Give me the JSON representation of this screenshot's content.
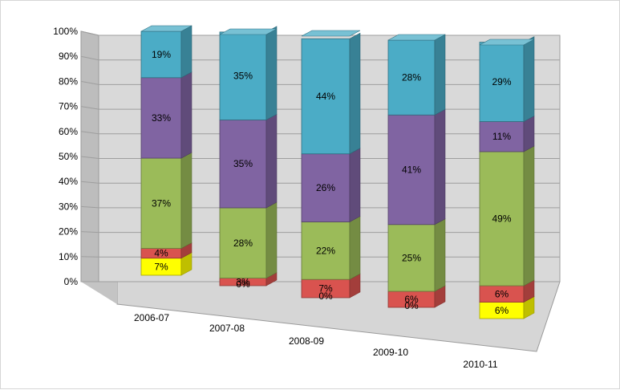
{
  "chart_data": {
    "type": "bar",
    "stacked": true,
    "three_d": true,
    "categories": [
      "2006-07",
      "2007-08",
      "2008-09",
      "2009-10",
      "2010-11"
    ],
    "series": [
      {
        "color": "#ffff00",
        "values": [
          7,
          0,
          0,
          0,
          6
        ],
        "labels": [
          "7%",
          "0%",
          "0%",
          "0%",
          "6%"
        ]
      },
      {
        "color": "#d9534f",
        "values": [
          4,
          3,
          7,
          6,
          6
        ],
        "labels": [
          "4%",
          "3%",
          "7%",
          "6%",
          "6%"
        ]
      },
      {
        "color": "#9bbb59",
        "values": [
          37,
          28,
          22,
          25,
          49
        ],
        "labels": [
          "37%",
          "28%",
          "22%",
          "25%",
          "49%"
        ]
      },
      {
        "color": "#8064a2",
        "values": [
          33,
          35,
          26,
          41,
          11
        ],
        "labels": [
          "33%",
          "35%",
          "26%",
          "41%",
          "11%"
        ]
      },
      {
        "color": "#4bacc6",
        "values": [
          19,
          35,
          44,
          28,
          29
        ],
        "labels": [
          "19%",
          "35%",
          "44%",
          "28%",
          "29%"
        ]
      }
    ],
    "yticks": [
      "0%",
      "10%",
      "20%",
      "30%",
      "40%",
      "50%",
      "60%",
      "70%",
      "80%",
      "90%",
      "100%"
    ],
    "ylim": [
      0,
      100
    ],
    "grid": true,
    "legend": "none",
    "title": "",
    "xlabel": "",
    "ylabel": ""
  }
}
